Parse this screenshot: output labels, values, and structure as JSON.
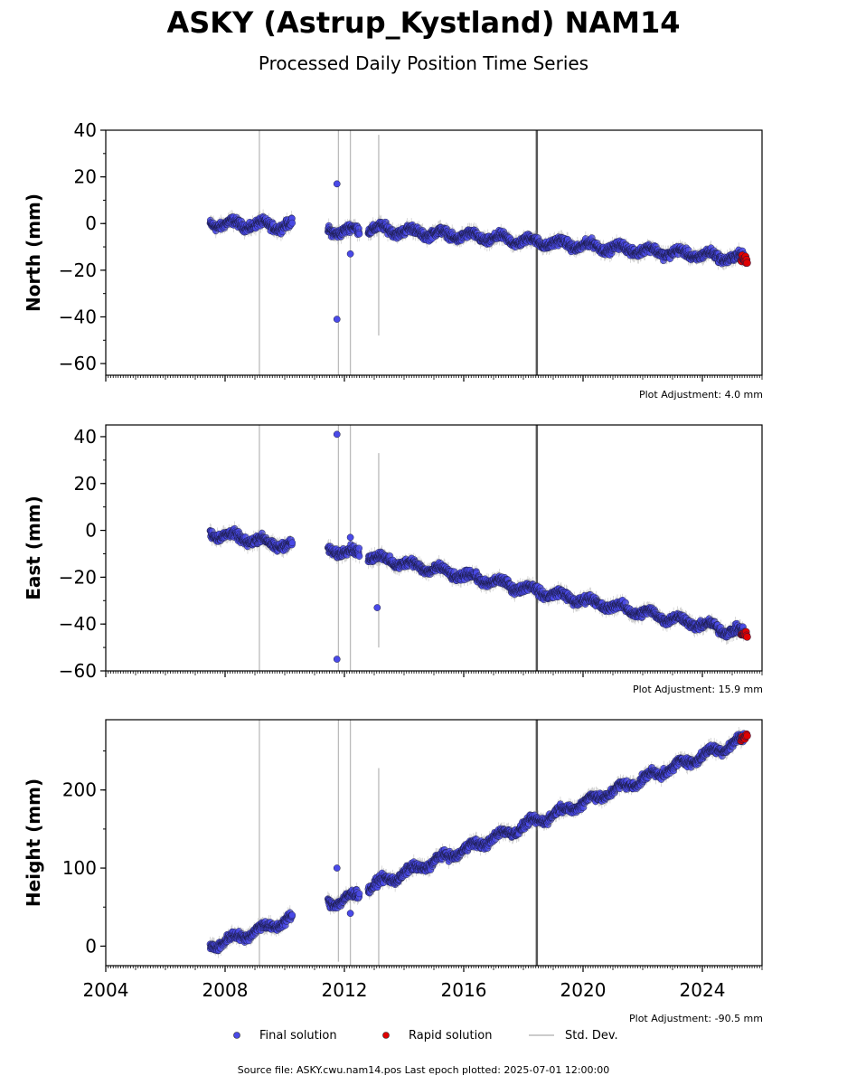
{
  "header": {
    "title": "ASKY (Astrup_Kystland) NAM14",
    "subtitle": "Processed Daily Position Time Series"
  },
  "panels": [
    {
      "ylabel": "North (mm)",
      "adjustment": "Plot Adjustment: 4.0 mm"
    },
    {
      "ylabel": "East (mm)",
      "adjustment": "Plot Adjustment: 15.9 mm"
    },
    {
      "ylabel": "Height (mm)",
      "adjustment": "Plot Adjustment: -90.5 mm"
    }
  ],
  "legend": {
    "final": "Final solution",
    "rapid": "Rapid solution",
    "std": "Std. Dev."
  },
  "footer": {
    "source": "Source file: ASKY.cwu.nam14.pos  Last epoch plotted: 2025-07-01 12:00:00"
  },
  "colors": {
    "final": "#4a4ae8",
    "rapid": "#e00000",
    "std": "#bbbbbb",
    "event_line": "#555555"
  },
  "chart_data": [
    {
      "type": "scatter",
      "ylabel": "North (mm)",
      "xlim": [
        2004.0,
        2026.0
      ],
      "ylim": [
        -65,
        40
      ],
      "yticks": [
        -60,
        -40,
        -20,
        0,
        20,
        40
      ],
      "event_line": 2018.45,
      "std_lines": [
        {
          "x": 2009.15,
          "low": -65,
          "high": 40
        },
        {
          "x": 2011.8,
          "low": -65,
          "high": 40
        },
        {
          "x": 2012.2,
          "low": -65,
          "high": 40
        },
        {
          "x": 2013.15,
          "low": -48,
          "high": 38
        }
      ],
      "series": [
        {
          "name": "Final solution",
          "segments": [
            {
              "x0": 2007.5,
              "x1": 2010.25,
              "y0": 0,
              "y1": -1
            },
            {
              "x0": 2011.45,
              "x1": 2012.5,
              "y0": -3,
              "y1": -3
            },
            {
              "x0": 2012.8,
              "x1": 2025.4,
              "y0": -2,
              "y1": -15
            }
          ]
        },
        {
          "name": "Rapid solution",
          "segments": [
            {
              "x0": 2025.3,
              "x1": 2025.5,
              "y0": -15,
              "y1": -16
            }
          ]
        }
      ],
      "outliers": [
        [
          2011.75,
          17
        ],
        [
          2011.75,
          -41
        ],
        [
          2012.2,
          -13
        ]
      ]
    },
    {
      "type": "scatter",
      "ylabel": "East (mm)",
      "xlim": [
        2004.0,
        2026.0
      ],
      "ylim": [
        -60,
        45
      ],
      "yticks": [
        -60,
        -40,
        -20,
        0,
        20,
        40
      ],
      "event_line": 2018.45,
      "std_lines": [
        {
          "x": 2009.15,
          "low": -60,
          "high": 45
        },
        {
          "x": 2011.8,
          "low": -60,
          "high": 45
        },
        {
          "x": 2012.2,
          "low": -60,
          "high": 45
        },
        {
          "x": 2013.15,
          "low": -50,
          "high": 33
        }
      ],
      "series": [
        {
          "name": "Final solution",
          "segments": [
            {
              "x0": 2007.5,
              "x1": 2010.25,
              "y0": -1,
              "y1": -7
            },
            {
              "x0": 2011.45,
              "x1": 2012.5,
              "y0": -8,
              "y1": -10
            },
            {
              "x0": 2012.8,
              "x1": 2025.4,
              "y0": -11,
              "y1": -44
            }
          ]
        },
        {
          "name": "Rapid solution",
          "segments": [
            {
              "x0": 2025.3,
              "x1": 2025.5,
              "y0": -44,
              "y1": -45
            }
          ]
        }
      ],
      "outliers": [
        [
          2011.75,
          41
        ],
        [
          2011.75,
          -55
        ],
        [
          2013.1,
          -33
        ],
        [
          2012.2,
          -3
        ]
      ]
    },
    {
      "type": "scatter",
      "ylabel": "Height (mm)",
      "xlim": [
        2004.0,
        2026.0
      ],
      "ylim": [
        -25,
        290
      ],
      "yticks": [
        0,
        100,
        200
      ],
      "xticks": [
        2004,
        2008,
        2012,
        2016,
        2020,
        2024
      ],
      "event_line": 2018.45,
      "std_lines": [
        {
          "x": 2009.15,
          "low": -25,
          "high": 290
        },
        {
          "x": 2011.8,
          "low": -20,
          "high": 290
        },
        {
          "x": 2012.2,
          "low": -25,
          "high": 290
        },
        {
          "x": 2013.15,
          "low": -25,
          "high": 228
        }
      ],
      "series": [
        {
          "name": "Final solution",
          "segments": [
            {
              "x0": 2007.5,
              "x1": 2010.25,
              "y0": 0,
              "y1": 35
            },
            {
              "x0": 2011.45,
              "x1": 2012.5,
              "y0": 55,
              "y1": 65
            },
            {
              "x0": 2012.8,
              "x1": 2025.4,
              "y0": 75,
              "y1": 265
            }
          ]
        },
        {
          "name": "Rapid solution",
          "segments": [
            {
              "x0": 2025.3,
              "x1": 2025.5,
              "y0": 265,
              "y1": 270
            }
          ]
        }
      ],
      "outliers": [
        [
          2011.75,
          100
        ],
        [
          2012.2,
          42
        ]
      ]
    }
  ]
}
